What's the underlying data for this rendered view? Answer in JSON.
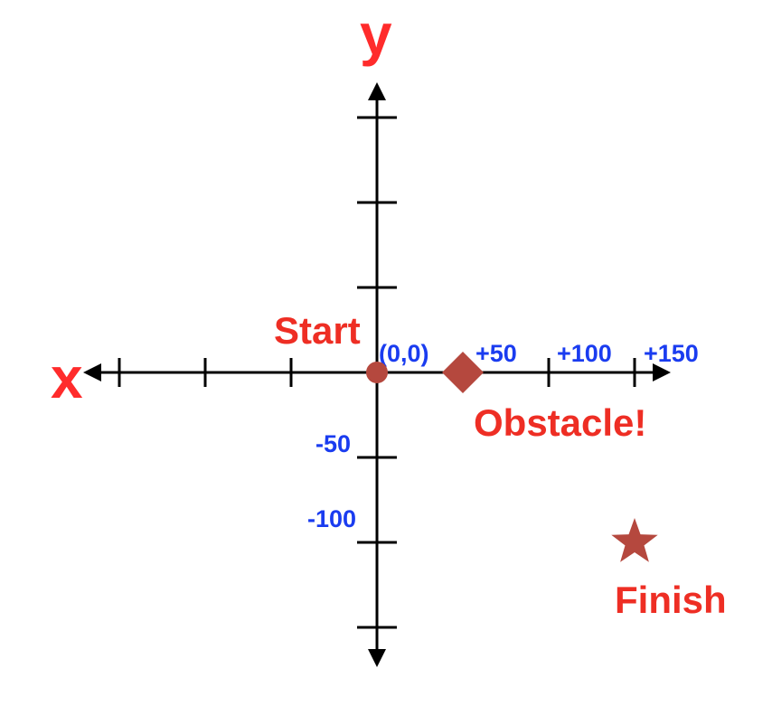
{
  "axes": {
    "x_label": "x",
    "y_label": "y",
    "x_range": [
      -150,
      150
    ],
    "y_range": [
      -150,
      150
    ],
    "tick_step": 50
  },
  "tick_labels": {
    "origin": "(0,0)",
    "x_plus_50": "+50",
    "x_plus_100": "+100",
    "x_plus_150": "+150",
    "y_minus_50": "-50",
    "y_minus_100": "-100"
  },
  "markers": {
    "start": {
      "label": "Start",
      "x": 0,
      "y": 0,
      "shape": "circle"
    },
    "obstacle": {
      "label": "Obstacle!",
      "x": 50,
      "y": 0,
      "shape": "diamond"
    },
    "finish": {
      "label": "Finish",
      "x": 150,
      "y": -100,
      "shape": "star"
    }
  },
  "colors": {
    "axis_letter": "#ff2b2b",
    "marker_label": "#ee2e24",
    "tick_label": "#1a3cf0",
    "marker_fill": "#b5483e",
    "axis_line": "#000000"
  }
}
